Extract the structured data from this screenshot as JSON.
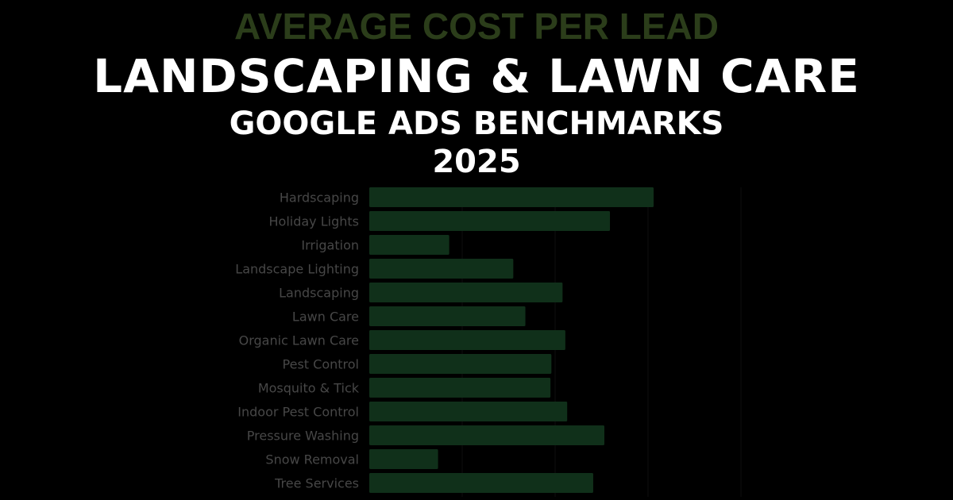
{
  "chart_data": {
    "type": "bar",
    "orientation": "horizontal",
    "title": "AVERAGE COST PER LEAD",
    "categories": [
      "Hardscaping",
      "Holiday Lights",
      "Irrigation",
      "Landscape Lighting",
      "Landscaping",
      "Lawn Care",
      "Organic Lawn Care",
      "Pest Control",
      "Mosquito & Tick",
      "Indoor Pest Control",
      "Pressure Washing",
      "Snow Removal",
      "Tree Services"
    ],
    "values": [
      3.06,
      2.59,
      0.86,
      1.55,
      2.08,
      1.68,
      2.11,
      1.96,
      1.95,
      2.13,
      2.53,
      0.74,
      2.41
    ],
    "xlim": [
      0,
      4
    ],
    "grid": true,
    "bar_color": "#10301a",
    "title_color": "#2b3d1a"
  },
  "overlay": {
    "headline": "LANDSCAPING & LAWN CARE",
    "subheadline": "GOOGLE ADS BENCHMARKS",
    "year": "2025"
  }
}
